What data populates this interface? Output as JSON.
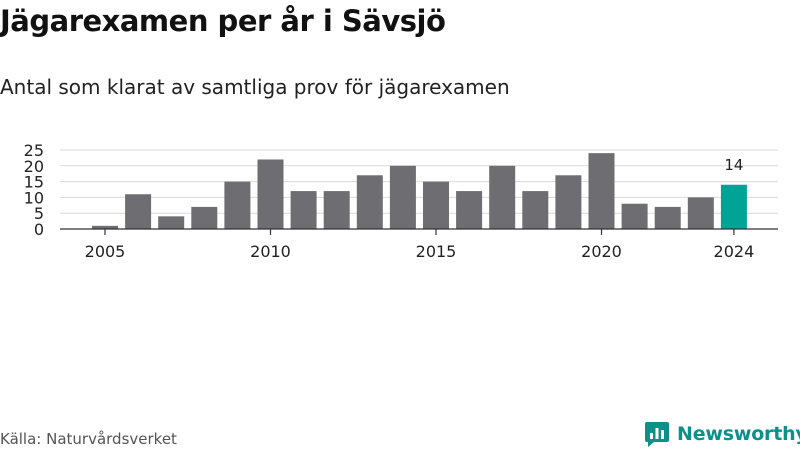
{
  "title": "Jägarexamen per år i Sävsjö",
  "subtitle": "Antal som klarat av samtliga prov för jägarexamen",
  "source": "Källa: Naturvårdsverket",
  "brand": "Newsworthy",
  "colors": {
    "bar": "#6e6d72",
    "highlight": "#00a396",
    "grid": "#d9d9d9",
    "axis": "#333333",
    "brand": "#0d8f8a"
  },
  "chart_data": {
    "type": "bar",
    "title": "Jägarexamen per år i Sävsjö",
    "subtitle": "Antal som klarat av samtliga prov för jägarexamen",
    "xlabel": "",
    "ylabel": "",
    "ylim": [
      0,
      25
    ],
    "yticks": [
      0,
      5,
      10,
      15,
      20,
      25
    ],
    "xticks": [
      2005,
      2010,
      2015,
      2020,
      2024
    ],
    "categories": [
      2005,
      2006,
      2007,
      2008,
      2009,
      2010,
      2011,
      2012,
      2013,
      2014,
      2015,
      2016,
      2017,
      2018,
      2019,
      2020,
      2021,
      2022,
      2023,
      2024
    ],
    "values": [
      1,
      11,
      4,
      7,
      15,
      22,
      12,
      12,
      17,
      20,
      15,
      12,
      20,
      12,
      17,
      24,
      8,
      7,
      10,
      14
    ],
    "highlight": {
      "category": 2024,
      "label": "14"
    },
    "grid": true,
    "legend": "none"
  }
}
